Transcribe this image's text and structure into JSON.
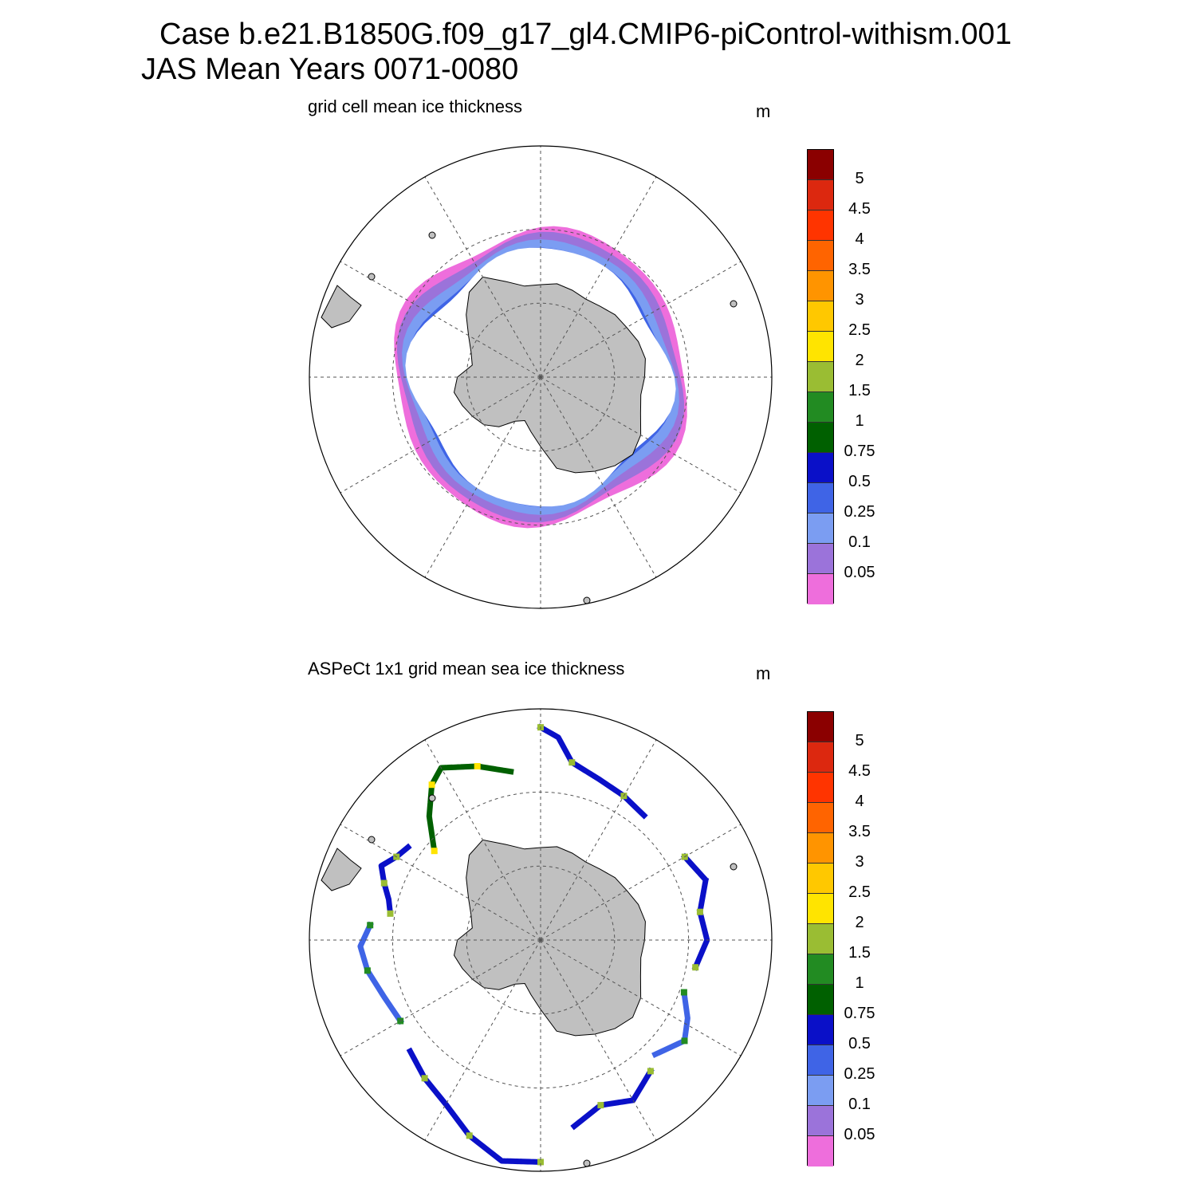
{
  "figure": {
    "title_line1": "Case b.e21.B1850G.f09_g17_gl4.CMIP6-piControl-withism.001",
    "title_line2": "JAS Mean   Years 0071-0080"
  },
  "colors": {
    "land": "#c0c0c0",
    "palette": [
      "#ee6edc",
      "#9b73da",
      "#7b9df2",
      "#3f64e6",
      "#0a10c8",
      "#006000",
      "#228b22",
      "#9abd33",
      "#ffe400",
      "#ffc800",
      "#ff9400",
      "#ff6400",
      "#ff3400",
      "#dc280f",
      "#8b0000"
    ]
  },
  "legend_labels": [
    "0.05",
    "0.1",
    "0.25",
    "0.5",
    "0.75",
    "1",
    "1.5",
    "2",
    "2.5",
    "3",
    "3.5",
    "4",
    "4.5",
    "5"
  ],
  "panels": [
    {
      "id": "model",
      "subtitle": "grid cell mean ice thickness",
      "unit": "m",
      "rings": [
        {
          "r": 0.99,
          "ci": 0
        },
        {
          "r": 0.95,
          "ci": 1
        },
        {
          "r": 0.9,
          "ci": 2
        },
        {
          "r": 0.85,
          "ci": 3
        },
        {
          "r": 0.79,
          "ci": 4
        },
        {
          "r": 0.73,
          "ci": 5
        },
        {
          "r": 0.67,
          "ci": 6
        }
      ],
      "thick_patches": [
        {
          "lon": -60,
          "r": 0.56,
          "ci": 7
        },
        {
          "lon": -75,
          "r": 0.6,
          "ci": 7
        },
        {
          "lon": -95,
          "r": 0.62,
          "ci": 8
        },
        {
          "lon": 160,
          "r": 0.66,
          "ci": 7
        },
        {
          "lon": -150,
          "r": 0.6,
          "ci": 7
        }
      ]
    },
    {
      "id": "obs",
      "subtitle": "ASPeCt 1x1 grid mean sea ice thickness",
      "unit": "m",
      "tracks": [
        {
          "lons": [
            -180,
            -170,
            -160,
            -150,
            -140,
            -130
          ],
          "rs": [
            0.96,
            0.97,
            0.9,
            0.82,
            0.78,
            0.74
          ],
          "ci": 4
        },
        {
          "lons": [
            -120,
            -110,
            -100,
            -92,
            -85
          ],
          "rs": [
            0.7,
            0.72,
            0.76,
            0.78,
            0.74
          ],
          "ci": 3
        },
        {
          "lons": [
            -80,
            -75,
            -70,
            -65,
            -60,
            -55
          ],
          "rs": [
            0.66,
            0.68,
            0.72,
            0.76,
            0.72,
            0.7
          ],
          "ci": 4
        },
        {
          "lons": [
            -50,
            -42,
            -35,
            -30,
            -20,
            -10
          ],
          "rs": [
            0.6,
            0.72,
            0.82,
            0.86,
            0.8,
            0.74
          ],
          "ci": 5
        },
        {
          "lons": [
            0,
            5,
            10,
            20,
            30,
            40
          ],
          "rs": [
            0.92,
            0.88,
            0.78,
            0.74,
            0.72,
            0.7
          ],
          "ci": 4
        },
        {
          "lons": [
            60,
            70,
            80,
            90,
            100
          ],
          "rs": [
            0.72,
            0.76,
            0.7,
            0.72,
            0.68
          ],
          "ci": 4
        },
        {
          "lons": [
            110,
            118,
            125,
            135
          ],
          "rs": [
            0.66,
            0.72,
            0.76,
            0.7
          ],
          "ci": 3
        },
        {
          "lons": [
            140,
            150,
            160,
            170
          ],
          "rs": [
            0.74,
            0.8,
            0.76,
            0.82
          ],
          "ci": 4
        }
      ]
    }
  ]
}
